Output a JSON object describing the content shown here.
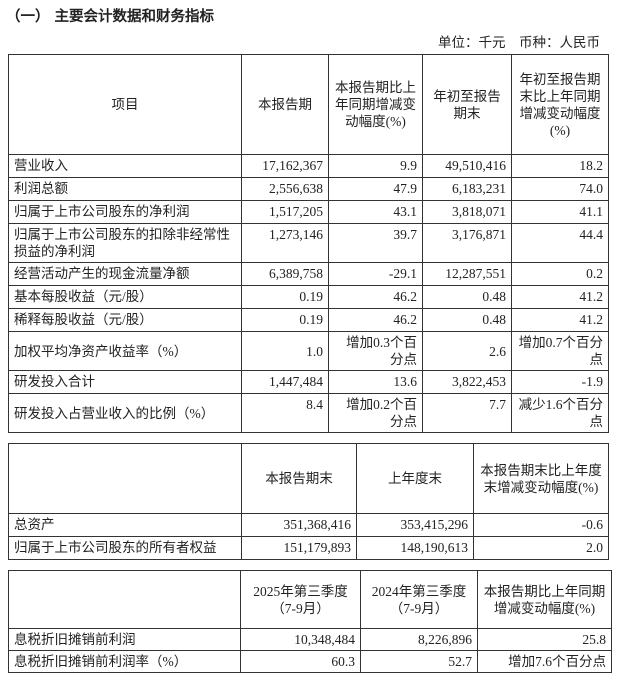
{
  "title": "（一） 主要会计数据和财务指标",
  "unit_line": "单位：千元　币种：人民币",
  "table1": {
    "headers": [
      "项目",
      "本报告期",
      "本报告期比上年同期增减变动幅度(%)",
      "年初至报告期末",
      "年初至报告期末比上年同期增减变动幅度(%)"
    ],
    "rows": [
      [
        "营业收入",
        "17,162,367",
        "9.9",
        "49,510,416",
        "18.2"
      ],
      [
        "利润总额",
        "2,556,638",
        "47.9",
        "6,183,231",
        "74.0"
      ],
      [
        "归属于上市公司股东的净利润",
        "1,517,205",
        "43.1",
        "3,818,071",
        "41.1"
      ],
      [
        "归属于上市公司股东的扣除非经常性损益的净利润",
        "1,273,146",
        "39.7",
        "3,176,871",
        "44.4"
      ],
      [
        "经营活动产生的现金流量净额",
        "6,389,758",
        "-29.1",
        "12,287,551",
        "0.2"
      ],
      [
        "基本每股收益（元/股）",
        "0.19",
        "46.2",
        "0.48",
        "41.2"
      ],
      [
        "稀释每股收益（元/股）",
        "0.19",
        "46.2",
        "0.48",
        "41.2"
      ],
      [
        "加权平均净资产收益率（%）",
        "1.0",
        "增加0.3个百分点",
        "2.6",
        "增加0.7个百分点"
      ],
      [
        "研发投入合计",
        "1,447,484",
        "13.6",
        "3,822,453",
        "-1.9"
      ],
      [
        "研发投入占营业收入的比例（%）",
        "8.4",
        "增加0.2个百分点",
        "7.7",
        "减少1.6个百分点"
      ]
    ]
  },
  "table2": {
    "headers": [
      "",
      "本报告期末",
      "上年度末",
      "本报告期末比上年度末增减变动幅度(%)"
    ],
    "rows": [
      [
        "总资产",
        "351,368,416",
        "353,415,296",
        "-0.6"
      ],
      [
        "归属于上市公司股东的所有者权益",
        "151,179,893",
        "148,190,613",
        "2.0"
      ]
    ]
  },
  "table3": {
    "headers": [
      "",
      "2025年第三季度（7-9月）",
      "2024年第三季度（7-9月）",
      "本报告期比上年同期增减变动幅度(%)"
    ],
    "rows": [
      [
        "息税折旧摊销前利润",
        "10,348,484",
        "8,226,896",
        "25.8"
      ],
      [
        "息税折旧摊销前利润率（%）",
        "60.3",
        "52.7",
        "增加7.6个百分点"
      ]
    ]
  }
}
